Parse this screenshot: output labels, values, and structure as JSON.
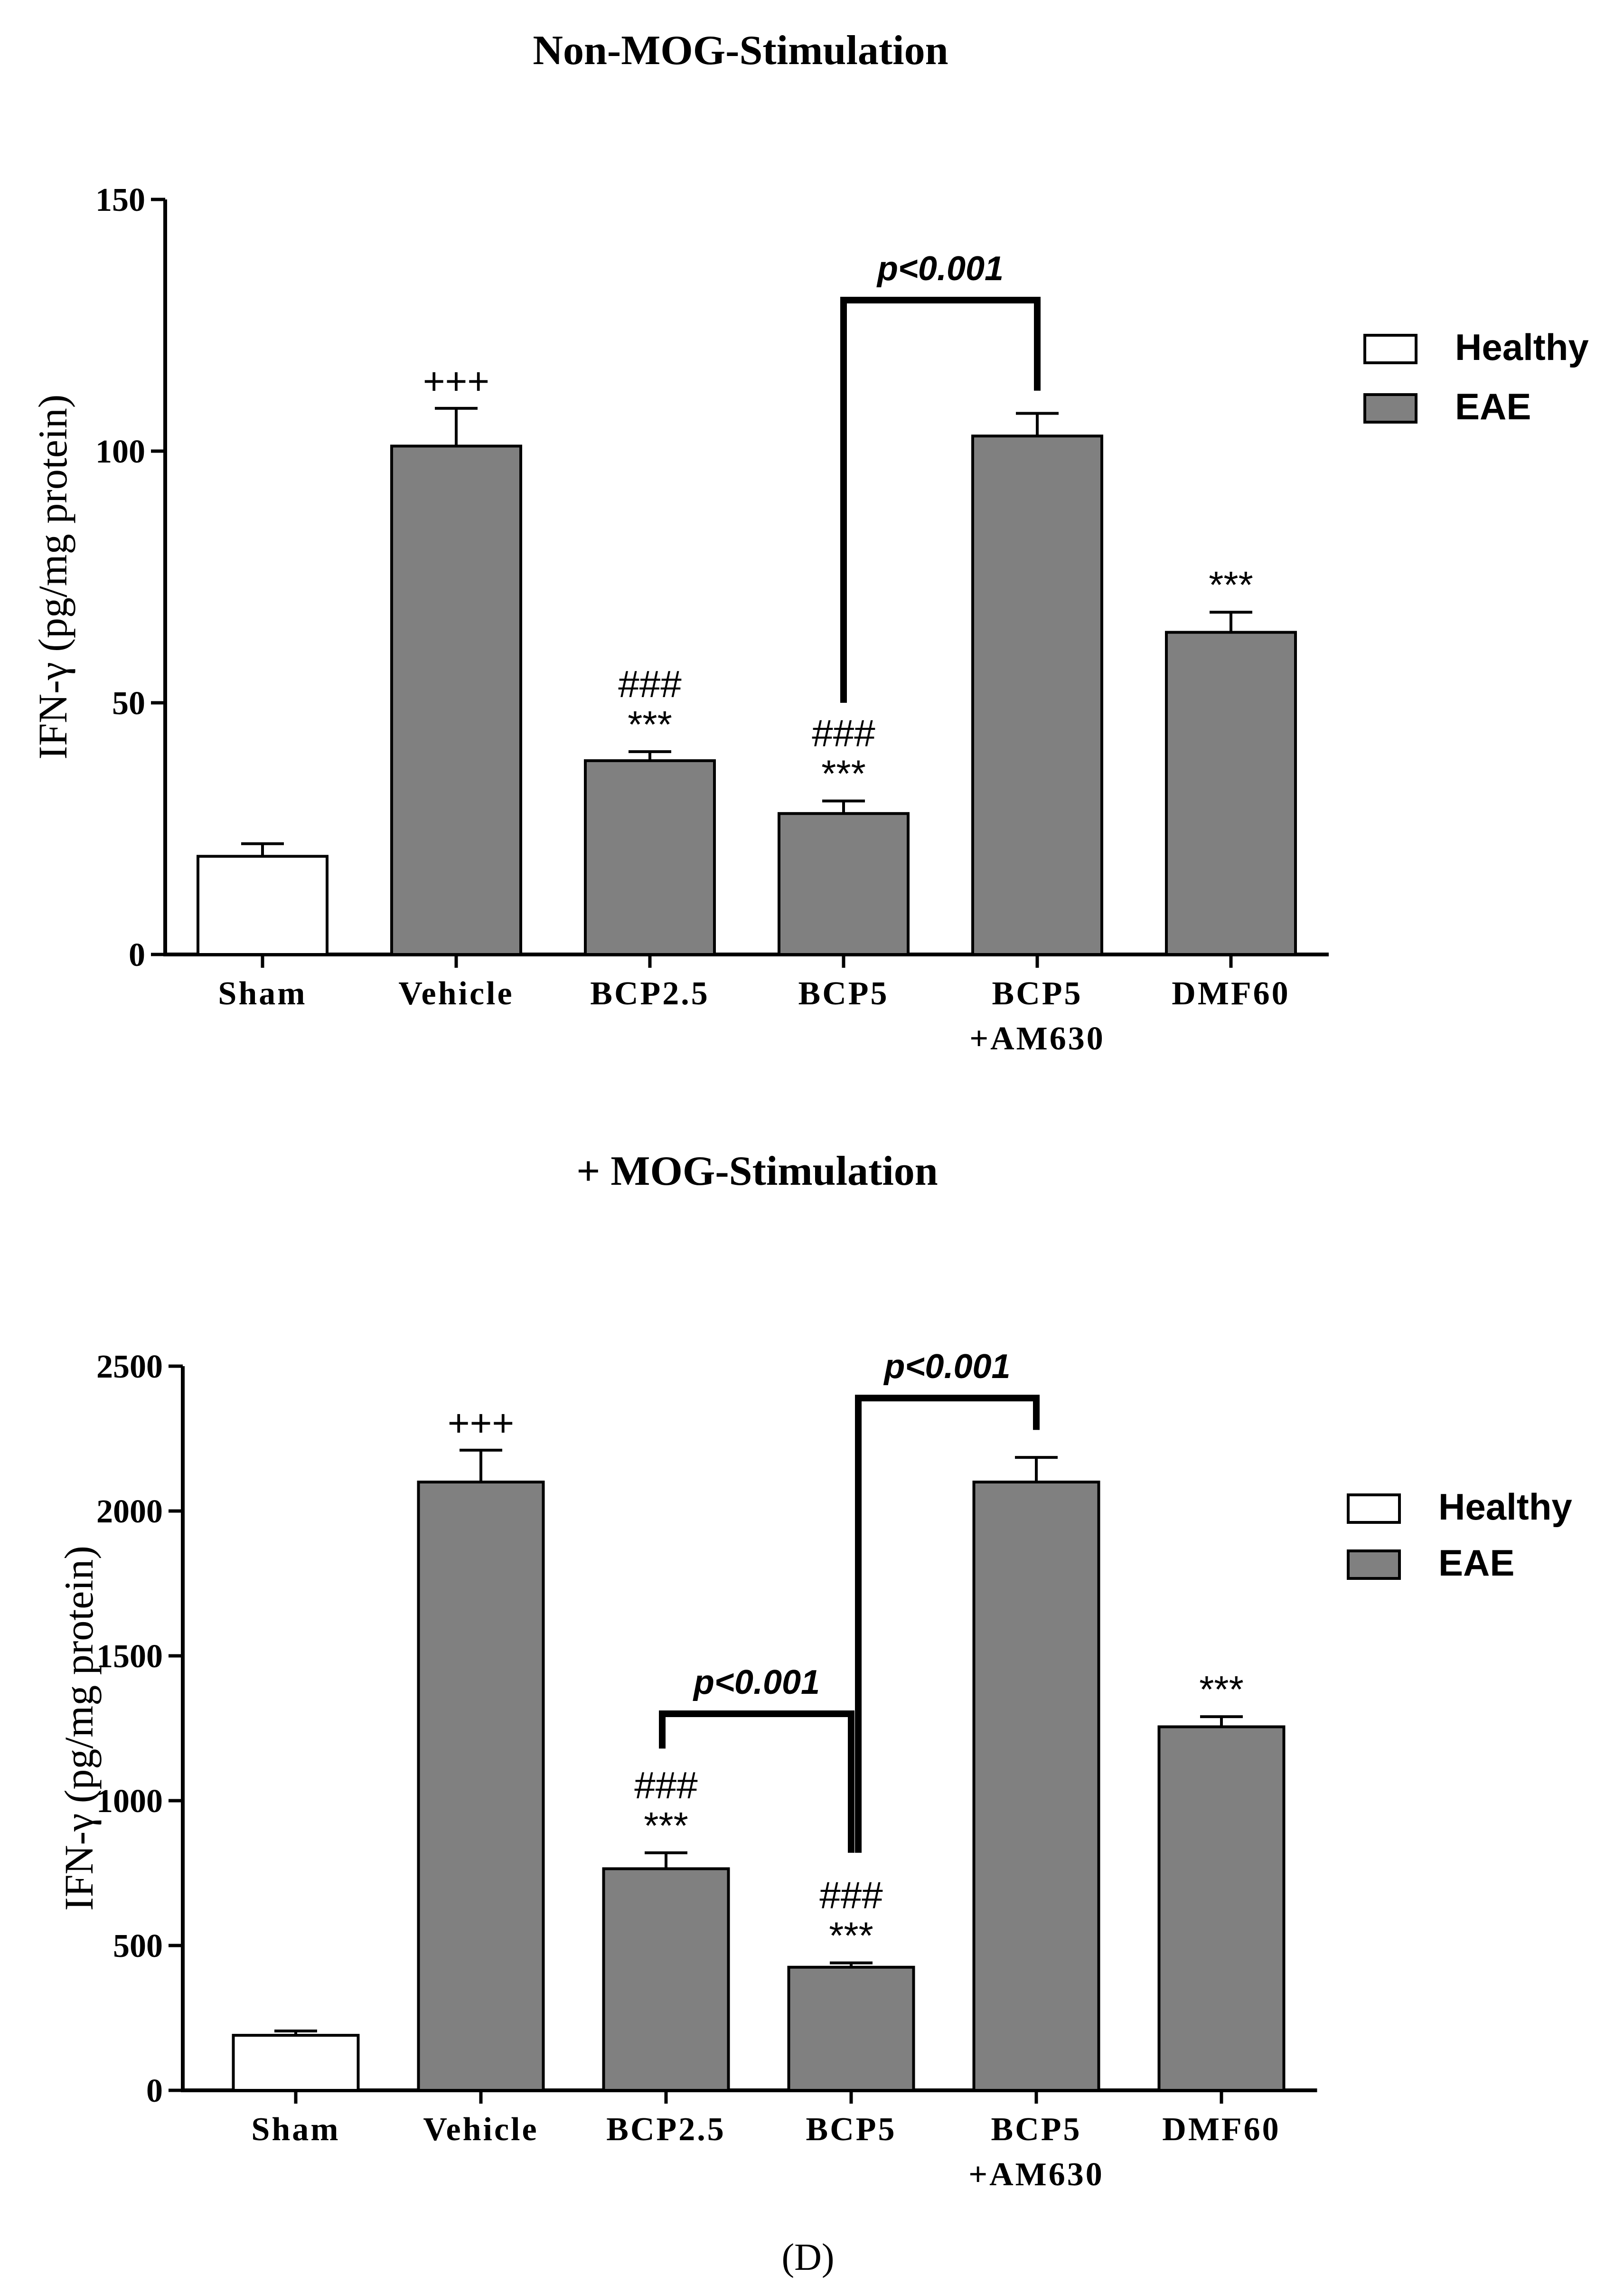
{
  "panel_label": "(D)",
  "colors": {
    "healthy": "#ffffff",
    "eae": "#808080",
    "stroke": "#000000"
  },
  "chart_data": [
    {
      "type": "bar",
      "title": "Non-MOG-Stimulation",
      "xlabel": "",
      "ylabel": "IFN-γ (pg/mg protein)",
      "ylim": [
        0,
        150
      ],
      "yticks": [
        0,
        50,
        100,
        150
      ],
      "categories": [
        {
          "lines": [
            "Sham"
          ]
        },
        {
          "lines": [
            "Vehicle"
          ]
        },
        {
          "lines": [
            "BCP2.5"
          ]
        },
        {
          "lines": [
            "BCP5"
          ]
        },
        {
          "lines": [
            "BCP5",
            "+AM630"
          ]
        },
        {
          "lines": [
            "DMF60"
          ]
        }
      ],
      "legend": [
        {
          "label": "Healthy",
          "color": "#ffffff"
        },
        {
          "label": "EAE",
          "color": "#808080"
        }
      ],
      "series_index": [
        0,
        1,
        1,
        1,
        1,
        1
      ],
      "values": [
        19.5,
        101,
        38.5,
        28,
        103,
        64
      ],
      "errors": [
        2.5,
        7.5,
        1.8,
        2.5,
        4.5,
        4
      ],
      "annotations": [
        {
          "index": 1,
          "lines": [
            "+++"
          ]
        },
        {
          "index": 2,
          "lines": [
            "###",
            "***"
          ]
        },
        {
          "index": 3,
          "lines": [
            "###",
            "***"
          ]
        },
        {
          "index": 5,
          "lines": [
            "***"
          ]
        }
      ],
      "comparisons": [
        {
          "from": 3,
          "to": 4,
          "label": "p<0.001",
          "bracket_y": 130,
          "left_end": 50,
          "right_end": 112
        }
      ]
    },
    {
      "type": "bar",
      "title": "+ MOG-Stimulation",
      "xlabel": "",
      "ylabel": "IFN-γ (pg/mg protein)",
      "ylim": [
        0,
        2500
      ],
      "yticks": [
        0,
        500,
        1000,
        1500,
        2000,
        2500
      ],
      "categories": [
        {
          "lines": [
            "Sham"
          ]
        },
        {
          "lines": [
            "Vehicle"
          ]
        },
        {
          "lines": [
            "BCP2.5"
          ]
        },
        {
          "lines": [
            "BCP5"
          ]
        },
        {
          "lines": [
            "BCP5",
            "+AM630"
          ]
        },
        {
          "lines": [
            "DMF60"
          ]
        }
      ],
      "legend": [
        {
          "label": "Healthy",
          "color": "#ffffff"
        },
        {
          "label": "EAE",
          "color": "#808080"
        }
      ],
      "series_index": [
        0,
        1,
        1,
        1,
        1,
        1
      ],
      "values": [
        190,
        2100,
        765,
        425,
        2100,
        1255
      ],
      "errors": [
        15,
        110,
        55,
        15,
        85,
        35
      ],
      "annotations": [
        {
          "index": 1,
          "lines": [
            "+++"
          ]
        },
        {
          "index": 2,
          "lines": [
            "###",
            "***"
          ]
        },
        {
          "index": 3,
          "lines": [
            "###",
            "***"
          ]
        },
        {
          "index": 5,
          "lines": [
            "***"
          ]
        }
      ],
      "comparisons": [
        {
          "from": 2,
          "to": 3,
          "label": "p<0.001",
          "bracket_y": 1300,
          "left_end": 1180,
          "right_end": 820
        },
        {
          "from": 3,
          "to": 4,
          "label": "p<0.001",
          "bracket_y": 2390,
          "left_end": 820,
          "right_end": 2280
        }
      ]
    }
  ]
}
